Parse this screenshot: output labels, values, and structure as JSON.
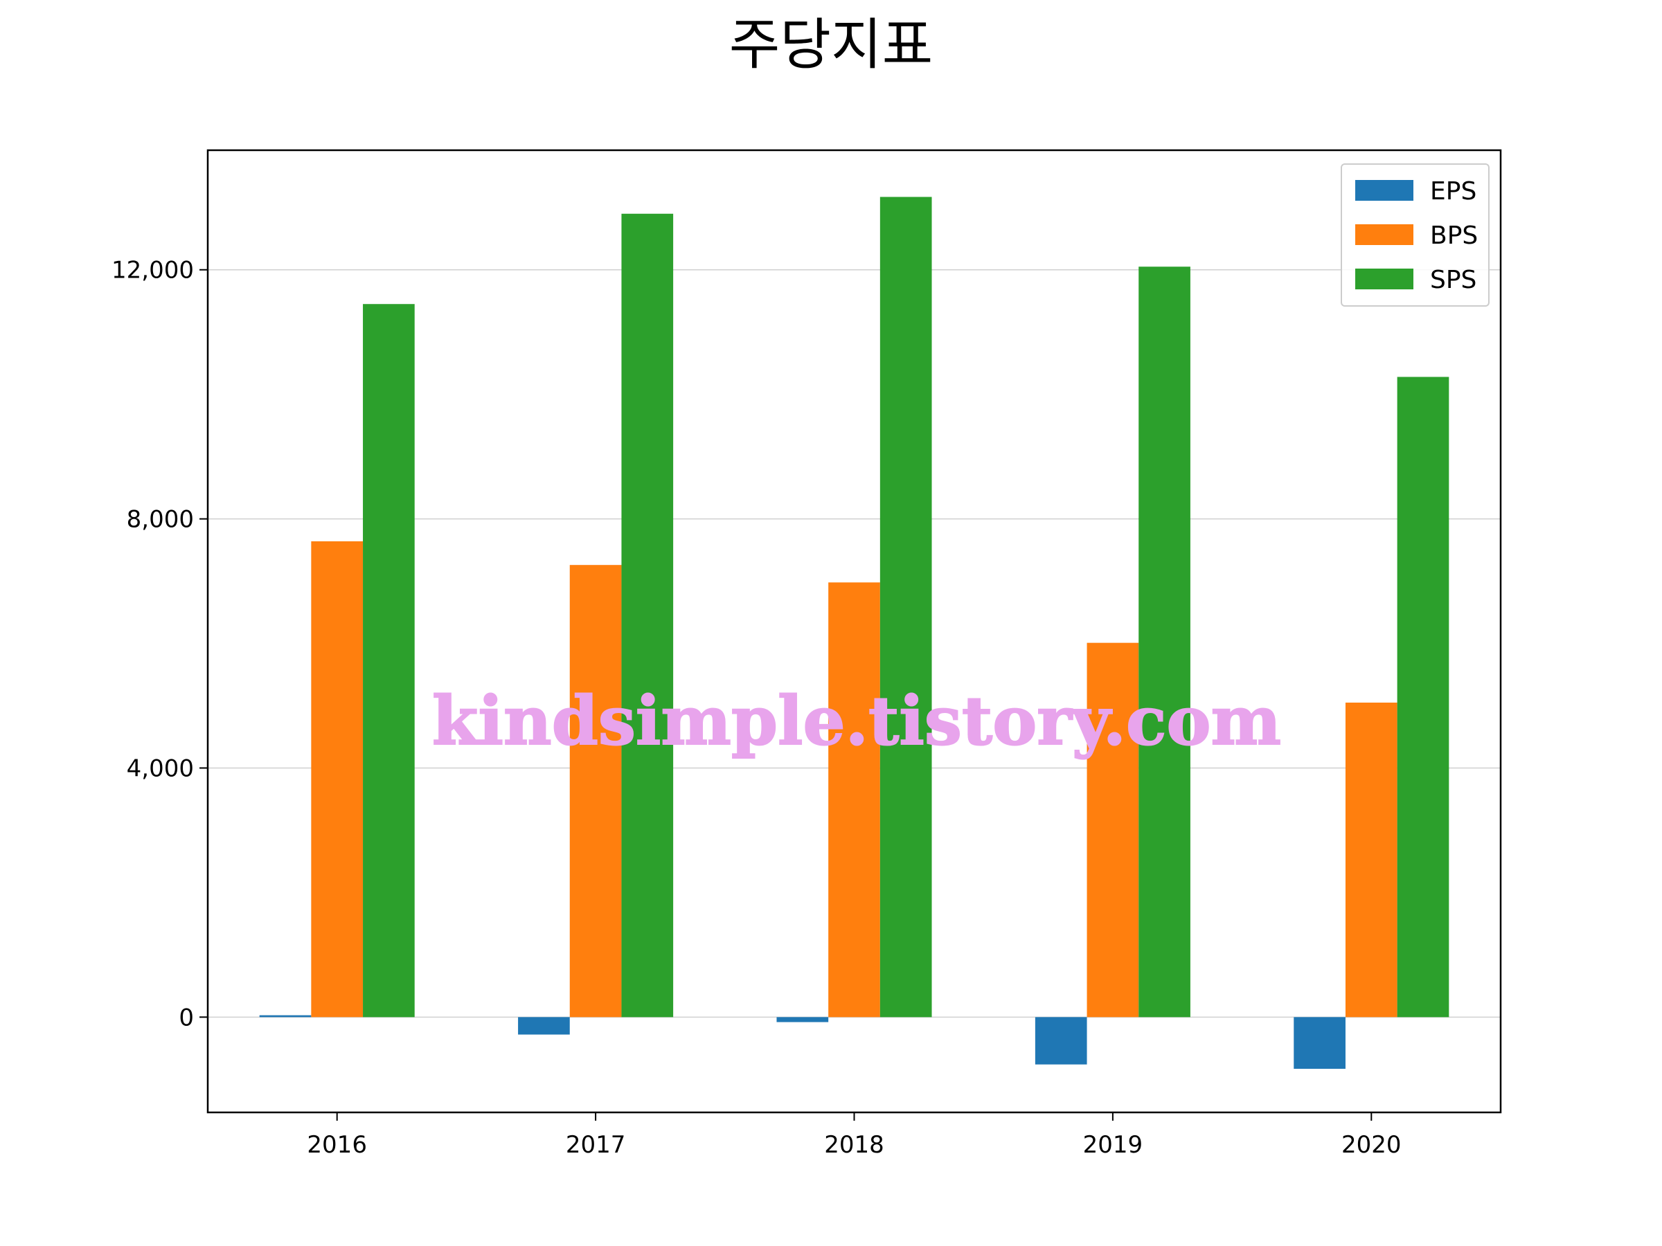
{
  "chart_data": {
    "type": "bar",
    "title": "주당지표",
    "categories": [
      "2016",
      "2017",
      "2018",
      "2019",
      "2020"
    ],
    "series": [
      {
        "name": "EPS",
        "color": "#1f77b4",
        "values": [
          30,
          -280,
          -80,
          -760,
          -830
        ]
      },
      {
        "name": "BPS",
        "color": "#ff7f0e",
        "values": [
          7640,
          7260,
          6980,
          6010,
          5050
        ]
      },
      {
        "name": "SPS",
        "color": "#2ca02c",
        "values": [
          11450,
          12900,
          13170,
          12050,
          10280
        ]
      }
    ],
    "yticks": [
      0,
      4000,
      8000,
      12000
    ],
    "ytick_labels": [
      "0",
      "4,000",
      "8,000",
      "12,000"
    ],
    "ylim": [
      -1530,
      13920
    ],
    "grid": "horizontal",
    "legend": "top-right",
    "xlabel": "",
    "ylabel": ""
  },
  "watermark": "kindsimple.tistory.com"
}
